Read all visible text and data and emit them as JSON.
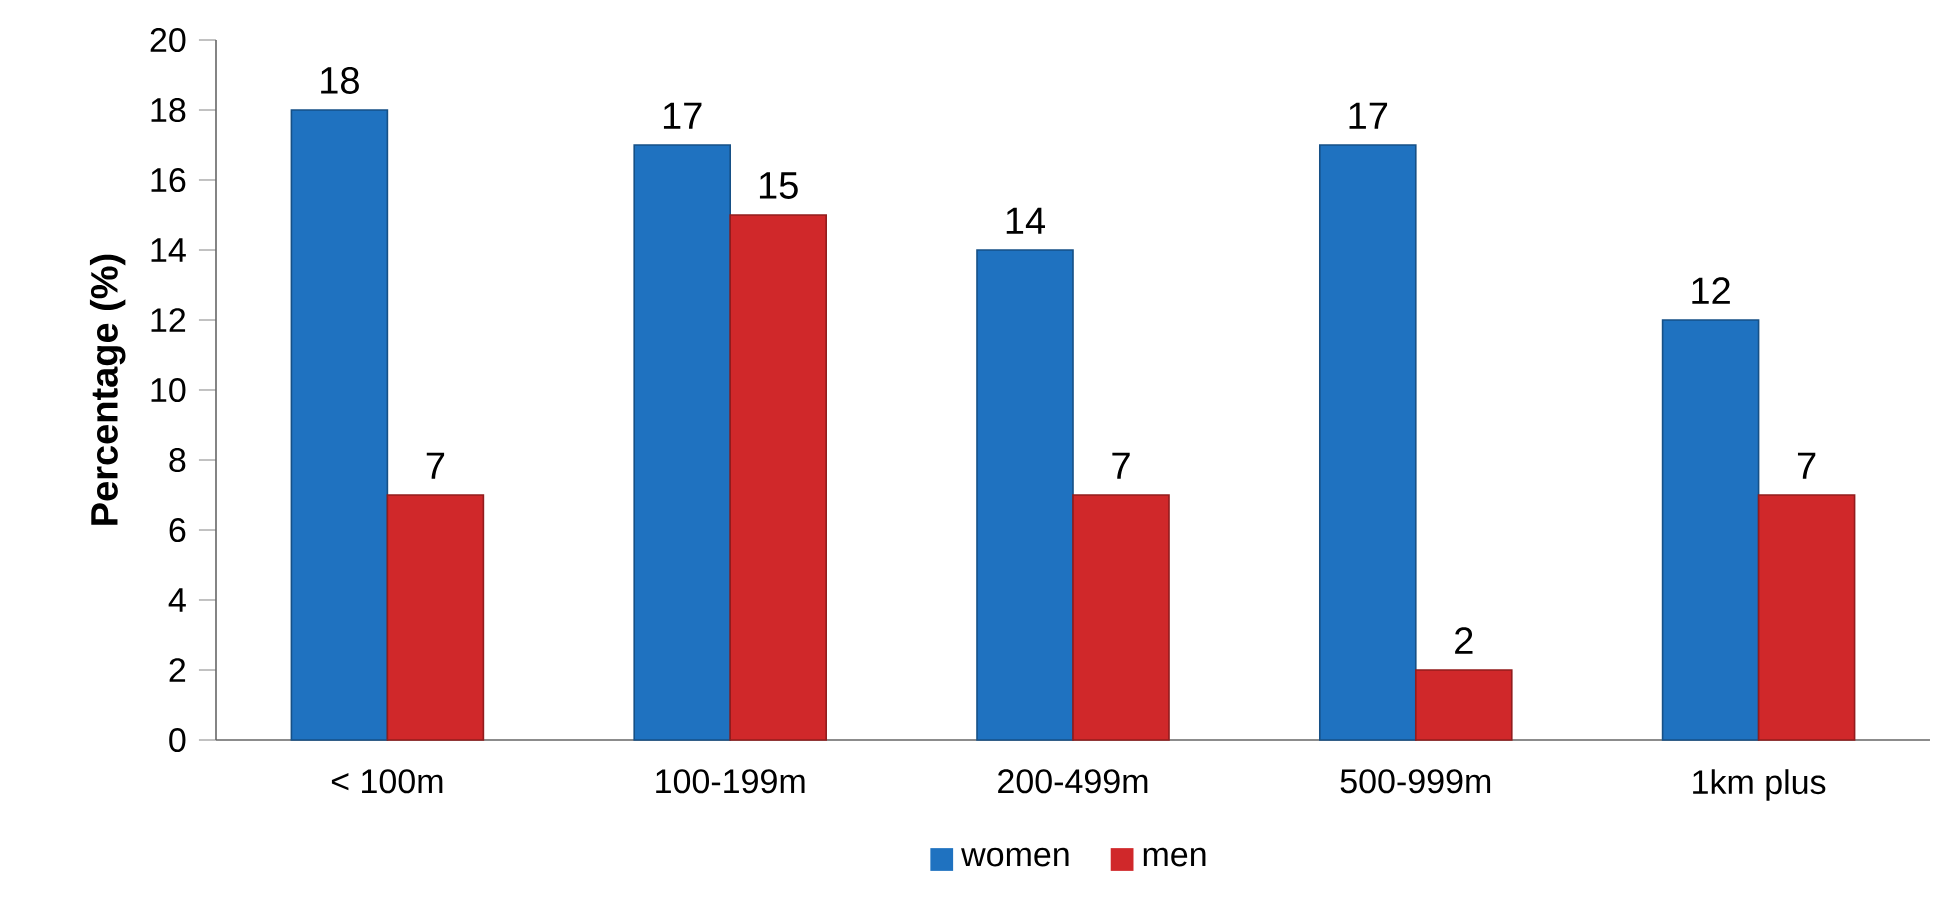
{
  "chart_data": {
    "type": "bar",
    "ylabel": "Percentage  (%)",
    "categories": [
      "< 100m",
      "100-199m",
      "200-499m",
      "500-999m",
      "1km plus"
    ],
    "series": [
      {
        "name": "women",
        "color": "#1f72c0",
        "values": [
          18,
          17,
          14,
          17,
          12
        ]
      },
      {
        "name": "men",
        "color": "#d0282a",
        "values": [
          7,
          15,
          7,
          2,
          7
        ]
      }
    ],
    "ylim": [
      0,
      20
    ],
    "yticks": [
      0,
      2,
      4,
      6,
      8,
      10,
      12,
      14,
      16,
      18,
      20
    ],
    "data_labels": true,
    "legend": "bottom"
  }
}
